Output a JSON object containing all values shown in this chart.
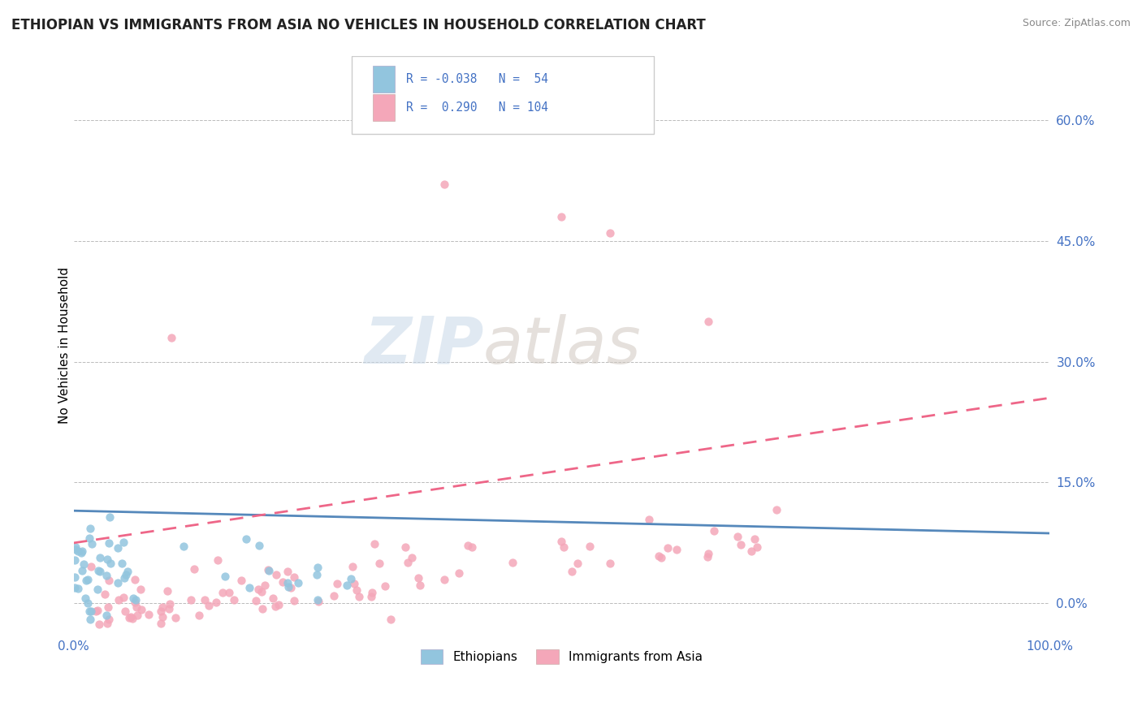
{
  "title": "ETHIOPIAN VS IMMIGRANTS FROM ASIA NO VEHICLES IN HOUSEHOLD CORRELATION CHART",
  "source": "Source: ZipAtlas.com",
  "ylabel": "No Vehicles in Household",
  "ytick_vals": [
    0.0,
    0.15,
    0.3,
    0.45,
    0.6
  ],
  "ytick_labels": [
    "0.0%",
    "15.0%",
    "30.0%",
    "45.0%",
    "60.0%"
  ],
  "xlim": [
    0.0,
    1.0
  ],
  "ylim": [
    -0.04,
    0.68
  ],
  "color_blue": "#92C5DE",
  "color_pink": "#F4A7B9",
  "line_blue": "#5588BB",
  "line_pink": "#EE6688",
  "background": "#FFFFFF",
  "grid_color": "#BBBBBB",
  "title_color": "#222222",
  "source_color": "#888888",
  "tick_color": "#4472C4",
  "legend_r_color": "#4472C4",
  "watermark_zip_color": "#C8D8E8",
  "watermark_atlas_color": "#D0C8C0"
}
